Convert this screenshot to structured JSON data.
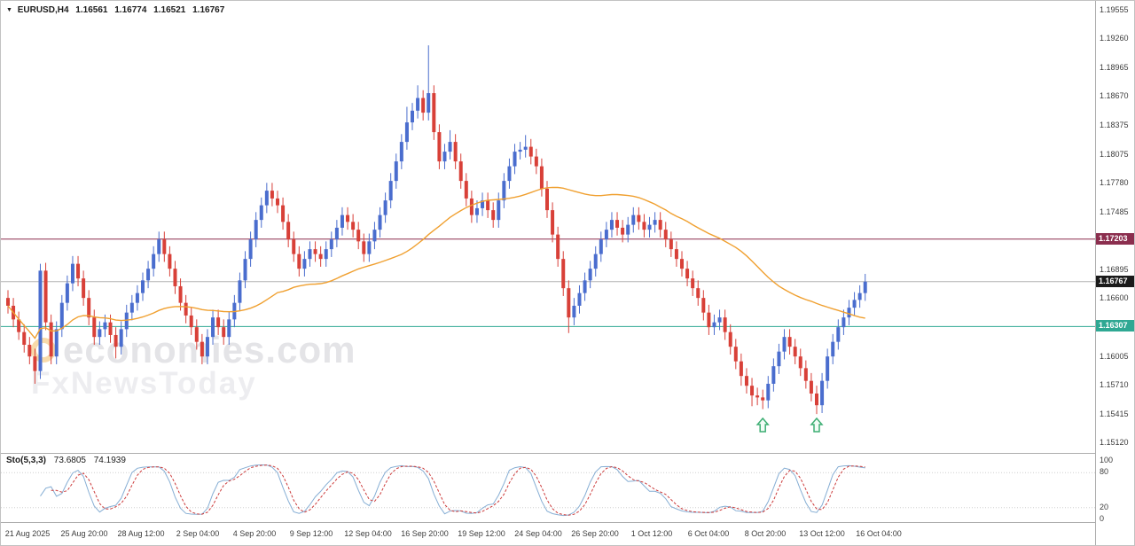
{
  "header": {
    "symbol_line": "EURUSD,H4",
    "open": "1.16561",
    "high": "1.16774",
    "low": "1.16521",
    "close": "1.16767"
  },
  "watermark": {
    "line1": "economies.com",
    "line2": "FxNewsToday"
  },
  "colors": {
    "up_candle": "#4a6dce",
    "down_candle": "#d84038",
    "ma_line": "#f0a030",
    "resistance_line": "#8b2e4e",
    "support_line": "#2fa893",
    "last_price": "#1a1a1a",
    "arrow": "#3dae73",
    "sto_main": "#86aed4",
    "sto_signal": "#cc3b3b"
  },
  "chart_data": [
    {
      "type": "candlestick",
      "symbol": "EURUSD",
      "timeframe": "H4",
      "y_axis": {
        "min": 1.1512,
        "max": 1.19555,
        "tick_labels": [
          "1.19555",
          "1.19260",
          "1.18965",
          "1.18670",
          "1.18375",
          "1.18075",
          "1.17780",
          "1.17485",
          "1.16895",
          "1.16600",
          "1.16005",
          "1.15710",
          "1.15415",
          "1.15120"
        ]
      },
      "x_axis": {
        "tick_labels": [
          "21 Aug 2025",
          "25 Aug 20:00",
          "28 Aug 12:00",
          "2 Sep 04:00",
          "4 Sep 20:00",
          "9 Sep 12:00",
          "12 Sep 04:00",
          "16 Sep 20:00",
          "19 Sep 12:00",
          "24 Sep 04:00",
          "26 Sep 20:00",
          "1 Oct 12:00",
          "6 Oct 04:00",
          "8 Oct 20:00",
          "13 Oct 12:00",
          "16 Oct 04:00"
        ]
      },
      "first_open": 1.166,
      "default_wick": 0.0008,
      "closes": [
        1.1652,
        1.1638,
        1.1625,
        1.1612,
        1.16,
        1.1585,
        1.1688,
        1.1635,
        1.16,
        1.1628,
        1.1655,
        1.1675,
        1.1695,
        1.168,
        1.166,
        1.164,
        1.162,
        1.1628,
        1.1635,
        1.1622,
        1.161,
        1.1628,
        1.1645,
        1.1655,
        1.1665,
        1.1678,
        1.169,
        1.1705,
        1.172,
        1.1705,
        1.169,
        1.1672,
        1.1655,
        1.1642,
        1.163,
        1.1615,
        1.16,
        1.162,
        1.164,
        1.163,
        1.162,
        1.1638,
        1.1655,
        1.1678,
        1.17,
        1.172,
        1.174,
        1.1755,
        1.177,
        1.1762,
        1.1755,
        1.1738,
        1.172,
        1.1705,
        1.169,
        1.17,
        1.171,
        1.1705,
        1.17,
        1.171,
        1.172,
        1.1732,
        1.1745,
        1.1738,
        1.173,
        1.1718,
        1.1705,
        1.1718,
        1.173,
        1.1745,
        1.176,
        1.178,
        1.18,
        1.182,
        1.184,
        1.1852,
        1.1865,
        1.185,
        1.187,
        1.183,
        1.18,
        1.181,
        1.182,
        1.18,
        1.178,
        1.1762,
        1.1745,
        1.1752,
        1.176,
        1.175,
        1.174,
        1.176,
        1.178,
        1.1795,
        1.181,
        1.1812,
        1.1815,
        1.1805,
        1.1795,
        1.1772,
        1.175,
        1.1725,
        1.17,
        1.167,
        1.164,
        1.1652,
        1.1665,
        1.1678,
        1.169,
        1.1705,
        1.172,
        1.173,
        1.174,
        1.1732,
        1.1725,
        1.1735,
        1.1745,
        1.1738,
        1.173,
        1.1735,
        1.174,
        1.173,
        1.172,
        1.171,
        1.17,
        1.169,
        1.168,
        1.167,
        1.166,
        1.1645,
        1.163,
        1.1635,
        1.164,
        1.1625,
        1.161,
        1.1595,
        1.158,
        1.157,
        1.156,
        1.1558,
        1.1555,
        1.1572,
        1.159,
        1.1605,
        1.162,
        1.161,
        1.16,
        1.1588,
        1.1575,
        1.1562,
        1.155,
        1.1575,
        1.16,
        1.1615,
        1.163,
        1.164,
        1.165,
        1.1658,
        1.1665,
        1.16767
      ],
      "wick_overrides": {
        "5": {
          "l": 1.1572
        },
        "6": {
          "h": 1.1695
        },
        "20": {
          "l": 1.1598
        },
        "74": {
          "h": 1.1856
        },
        "76": {
          "h": 1.1878
        },
        "78": {
          "h": 1.1919
        },
        "82": {
          "h": 1.1832
        },
        "96": {
          "h": 1.1827
        },
        "104": {
          "l": 1.1624
        },
        "136": {
          "l": 1.157
        },
        "138": {
          "l": 1.1549
        },
        "140": {
          "l": 1.1546
        },
        "150": {
          "l": 1.1541
        }
      },
      "hlines": [
        {
          "price": 1.17203,
          "label": "1.17203",
          "color": "#8b2e4e"
        },
        {
          "price": 1.16767,
          "label": "1.16767",
          "color": "#1a1a1a",
          "line_color": "#b4b4b4"
        },
        {
          "price": 1.16307,
          "label": "1.16307",
          "color": "#2fa893"
        }
      ],
      "ma": {
        "period": 45,
        "color": "#f0a030"
      },
      "arrows": [
        {
          "index": 140,
          "price": 1.15365
        },
        {
          "index": 150,
          "price": 1.15365
        }
      ],
      "up_color": "#4a6dce",
      "down_color": "#d84038"
    },
    {
      "type": "line",
      "name": "stochastic",
      "label": "Sto(5,3,3)",
      "values_text": [
        "73.6805",
        "74.1939"
      ],
      "k_period": 5,
      "slowing": 3,
      "d_period": 3,
      "range": [
        0,
        100
      ],
      "levels": [
        80,
        20
      ],
      "axis_labels": [
        "100",
        "80",
        "20",
        "0"
      ],
      "main_color": "#86aed4",
      "signal_color": "#cc3b3b"
    }
  ]
}
